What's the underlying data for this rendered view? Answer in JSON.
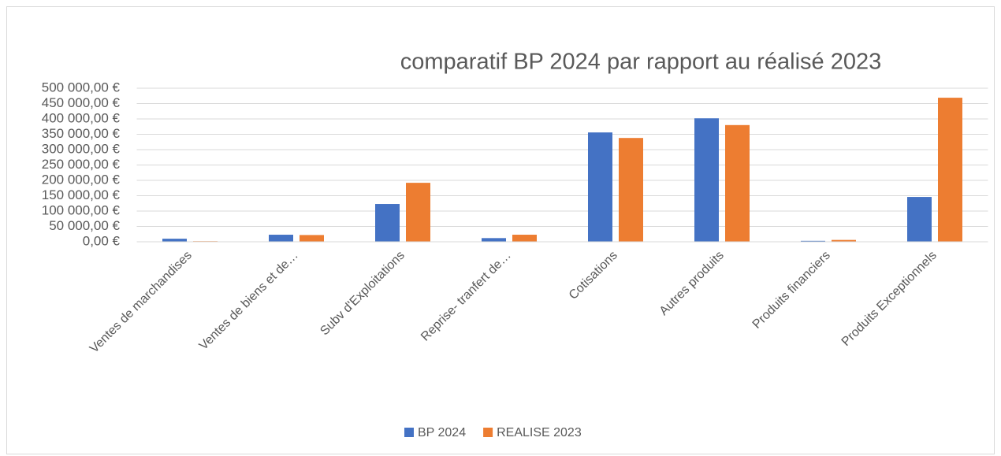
{
  "chart_data": {
    "type": "bar",
    "title": "comparatif BP 2024 par rapport au réalisé 2023",
    "categories": [
      "Ventes de marchandises",
      "Ventes de biens et de…",
      "Subv d'Exploitations",
      "Reprise- tranfert de…",
      "Cotisations",
      "Autres produits",
      "Produits financiers",
      "Produits Exceptionnels"
    ],
    "series": [
      {
        "name": "BP 2024",
        "color": "#4472c4",
        "values": [
          10000,
          23000,
          123000,
          12000,
          356000,
          402000,
          3000,
          146000
        ]
      },
      {
        "name": "REALISE 2023",
        "color": "#ed7d31",
        "values": [
          2000,
          22000,
          192000,
          23000,
          338000,
          380000,
          6000,
          469000
        ]
      }
    ],
    "ylim": [
      0,
      500000
    ],
    "yticks": [
      {
        "value": 0,
        "label": "0,00 €"
      },
      {
        "value": 50000,
        "label": "50 000,00 €"
      },
      {
        "value": 100000,
        "label": "100 000,00 €"
      },
      {
        "value": 150000,
        "label": "150 000,00 €"
      },
      {
        "value": 200000,
        "label": "200 000,00 €"
      },
      {
        "value": 250000,
        "label": "250 000,00 €"
      },
      {
        "value": 300000,
        "label": "300 000,00 €"
      },
      {
        "value": 350000,
        "label": "350 000,00 €"
      },
      {
        "value": 400000,
        "label": "400 000,00 €"
      },
      {
        "value": 450000,
        "label": "450 000,00 €"
      },
      {
        "value": 500000,
        "label": "500 000,00 €"
      }
    ],
    "grid": true,
    "legend": "bottom"
  }
}
